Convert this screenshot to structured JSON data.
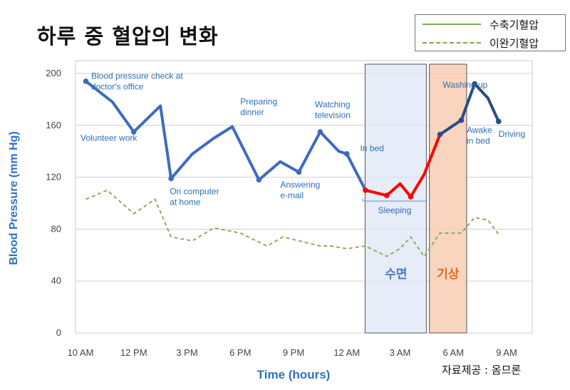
{
  "title": "하루 중 혈압의 변화",
  "source": "자료제공 : 옴므론",
  "legend": {
    "systolic": "수축기혈압",
    "diastolic": "이완기혈압"
  },
  "colors": {
    "systolic": "#3d6bbf",
    "diastolic": "#7aab4e",
    "highlight": "#ff0000",
    "morning": "#2c4a86",
    "sleep_fill": "#dde6f6",
    "wake_fill": "#f8cdb4",
    "sleep_text": "#4a78c0",
    "wake_text": "#e06a1f",
    "axis_label": "#2d72c2"
  },
  "chart_data": {
    "type": "line",
    "xlabel": "Time (hours)",
    "ylabel": "Blood Pressure (mm Hg)",
    "ylim": [
      0,
      200
    ],
    "xlim": [
      10,
      34.5
    ],
    "y_ticks": [
      "0",
      "40",
      "80",
      "120",
      "160",
      "200"
    ],
    "x_ticks": [
      {
        "x": 10,
        "label": "10 AM"
      },
      {
        "x": 12,
        "label": "12 PM"
      },
      {
        "x": 14,
        "label": "3 PM"
      },
      {
        "x": 16,
        "label": "6 PM"
      },
      {
        "x": 18,
        "label": "9 PM"
      },
      {
        "x": 20,
        "label": "12 AM"
      },
      {
        "x": 22,
        "label": "3 AM"
      },
      {
        "x": 24,
        "label": "6 AM"
      },
      {
        "x": 26,
        "label": "9 AM"
      }
    ],
    "grid": true,
    "series": [
      {
        "name": "수축기혈압",
        "values": [
          [
            10.2,
            194
          ],
          [
            11.2,
            178
          ],
          [
            12.0,
            155
          ],
          [
            13.0,
            175
          ],
          [
            13.4,
            119
          ],
          [
            14.2,
            138
          ],
          [
            15.0,
            150
          ],
          [
            15.7,
            159
          ],
          [
            16.7,
            118
          ],
          [
            17.5,
            132
          ],
          [
            18.2,
            124
          ],
          [
            19.0,
            155
          ],
          [
            19.7,
            140
          ],
          [
            20.0,
            138
          ],
          [
            20.7,
            110
          ],
          [
            21.5,
            106
          ],
          [
            22.0,
            115
          ],
          [
            22.4,
            105
          ],
          [
            22.9,
            122
          ],
          [
            23.5,
            153
          ],
          [
            24.3,
            164
          ],
          [
            24.8,
            192
          ],
          [
            25.3,
            181
          ],
          [
            25.7,
            163
          ]
        ]
      },
      {
        "name": "이완기혈압",
        "values": [
          [
            10.2,
            103
          ],
          [
            11.0,
            110
          ],
          [
            12.0,
            92
          ],
          [
            12.8,
            103
          ],
          [
            13.4,
            74
          ],
          [
            14.2,
            71
          ],
          [
            15.0,
            81
          ],
          [
            16.0,
            77
          ],
          [
            17.0,
            67
          ],
          [
            17.6,
            74
          ],
          [
            18.4,
            70
          ],
          [
            19.0,
            67
          ],
          [
            19.4,
            67
          ],
          [
            20.0,
            65
          ],
          [
            20.7,
            67
          ],
          [
            21.5,
            59
          ],
          [
            22.0,
            65
          ],
          [
            22.4,
            74
          ],
          [
            22.9,
            59
          ],
          [
            23.5,
            77
          ],
          [
            24.3,
            77
          ],
          [
            24.8,
            89
          ],
          [
            25.3,
            87
          ],
          [
            25.7,
            76
          ]
        ]
      }
    ],
    "sleep_band": {
      "from": 20.7,
      "to": 23.0,
      "label": "수면"
    },
    "wake_band": {
      "from": 23.1,
      "to": 24.5,
      "label": "기상"
    },
    "sleeping_bracket": {
      "from": 20.6,
      "to": 23.0,
      "label": "Sleeping"
    },
    "annotations": [
      {
        "lines": [
          "Blood pressure check at",
          "doctor's office"
        ],
        "x": 10.4,
        "y": 196
      },
      {
        "lines": [
          "Volunteer work"
        ],
        "x": 10.0,
        "y": 148
      },
      {
        "lines": [
          "On computer",
          "at home"
        ],
        "x": 13.35,
        "y": 107
      },
      {
        "lines": [
          "Preparing",
          "dinner"
        ],
        "x": 16.0,
        "y": 176
      },
      {
        "lines": [
          "Answering",
          "e-mail"
        ],
        "x": 17.5,
        "y": 112
      },
      {
        "lines": [
          "Watching",
          "television"
        ],
        "x": 18.8,
        "y": 174
      },
      {
        "lines": [
          "In bed"
        ],
        "x": 20.5,
        "y": 140
      },
      {
        "lines": [
          "Washing up"
        ],
        "x": 23.6,
        "y": 189
      },
      {
        "lines": [
          "Awake",
          "in bed"
        ],
        "x": 24.5,
        "y": 154
      },
      {
        "lines": [
          "Driving"
        ],
        "x": 25.7,
        "y": 151
      }
    ]
  }
}
